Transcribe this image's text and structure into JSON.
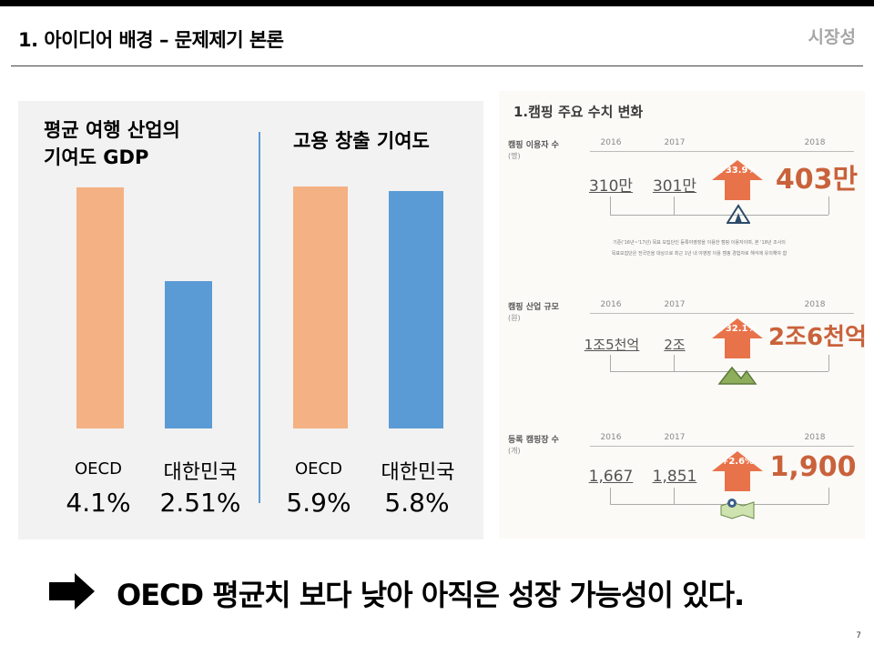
{
  "header": {
    "title": "1. 아이디어 배경 – 문제제기 본론",
    "section": "시장성"
  },
  "chart_data": [
    {
      "type": "bar",
      "title": "평균 여행 산업의\n기여도 GDP",
      "categories": [
        "OECD",
        "대한민국"
      ],
      "values": [
        4.1,
        2.51
      ],
      "value_labels": [
        "4.1%",
        "2.51%"
      ],
      "colors": [
        "#f4b183",
        "#5b9bd5"
      ],
      "ylim": [
        0,
        4.4
      ]
    },
    {
      "type": "bar",
      "title": "고용 창출 기여도",
      "categories": [
        "OECD",
        "대한민국"
      ],
      "values": [
        5.9,
        5.8
      ],
      "value_labels": [
        "5.9%",
        "5.8%"
      ],
      "colors": [
        "#f4b183",
        "#5b9bd5"
      ],
      "ylim": [
        0,
        6.3
      ]
    }
  ],
  "infographic": {
    "heading": "1.캠핑 주요 수치 변화",
    "note_line1": "기준('16년~'17년) 목표 모집단인 등록야영장을 이용한 캠핑 이용자이며, 본 '18년 조사의",
    "note_line2": "목표모집단은 전국민을 대상으로 최근 1년 내 야영장 이용 캠핑 경험자로 해석에 유의해야 함",
    "rows": [
      {
        "label": "캠핑 이용자 수",
        "unit": "(명)",
        "y2016": "2016",
        "y2017": "2017",
        "y2018": "2018",
        "v2016": "310만",
        "v2017": "301만",
        "growth": "+33.9%",
        "v2018": "403만"
      },
      {
        "label": "캠핑 산업 규모",
        "unit": "(원)",
        "y2016": "2016",
        "y2017": "2017",
        "y2018": "2018",
        "v2016": "1조5천억",
        "v2017": "2조",
        "growth": "+32.1%",
        "v2018": "2조6천억"
      },
      {
        "label": "등록 캠핑장 수",
        "unit": "(개)",
        "y2016": "2016",
        "y2017": "2017",
        "y2018": "2018",
        "v2016": "1,667",
        "v2017": "1,851",
        "growth": "+2.6%",
        "v2018": "1,900"
      }
    ],
    "accent": "#c9623b"
  },
  "conclusion": "OECD 평균치 보다 낮아 아직은 성장 가능성이 있다.",
  "page_number": "7"
}
